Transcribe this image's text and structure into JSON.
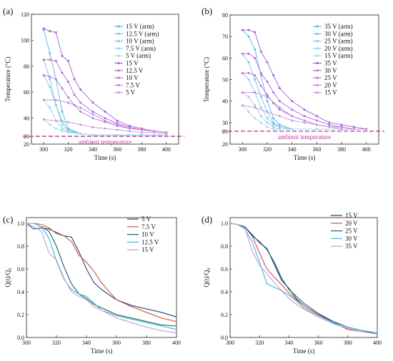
{
  "chart_data": [
    {
      "panel": "(a)",
      "type": "line",
      "xlabel": "Time (s)",
      "ylabel": "Temperature (°C)",
      "xlim": [
        290,
        410
      ],
      "ylim": [
        20,
        120
      ],
      "xticks": [
        300,
        320,
        340,
        360,
        380,
        400
      ],
      "yticks": [
        20,
        26,
        40,
        60,
        80,
        100,
        120
      ],
      "markers": true,
      "legend_position": "top-right",
      "annotation": "ambient temperature",
      "ambient_value": 26,
      "series": [
        {
          "name": "15 V (arm)",
          "color": "#5ab6e8",
          "x": [
            300,
            305,
            310,
            315,
            320,
            330,
            340,
            360,
            380,
            400
          ],
          "y": [
            108,
            90,
            70,
            45,
            32,
            28,
            27,
            27,
            27,
            27
          ]
        },
        {
          "name": "12.5 V (arm)",
          "color": "#6fc3e2",
          "x": [
            300,
            305,
            310,
            315,
            320,
            330,
            340,
            360,
            380,
            400
          ],
          "y": [
            85,
            70,
            50,
            38,
            31,
            28,
            27,
            27,
            27,
            27
          ]
        },
        {
          "name": "10 V (arm)",
          "color": "#7fcbe6",
          "x": [
            300,
            305,
            310,
            315,
            320,
            330,
            340,
            360,
            380,
            400
          ],
          "y": [
            73,
            64,
            50,
            35,
            30,
            28,
            27,
            27,
            27,
            27
          ]
        },
        {
          "name": "7.5 V (arm)",
          "color": "#8fd2ea",
          "x": [
            300,
            305,
            310,
            315,
            320,
            330,
            340,
            360,
            380,
            400
          ],
          "y": [
            54,
            48,
            38,
            32,
            29,
            28,
            27,
            27,
            27,
            27
          ]
        },
        {
          "name": "5 V (arm)",
          "color": "#a3d9ee",
          "x": [
            300,
            305,
            310,
            315,
            320,
            330,
            340,
            360,
            380,
            400
          ],
          "y": [
            39,
            35,
            32,
            30,
            29,
            28,
            27,
            27,
            27,
            27
          ]
        },
        {
          "name": "15 V",
          "color": "#a55fd6",
          "x": [
            300,
            305,
            310,
            315,
            320,
            325,
            330,
            340,
            350,
            360,
            370,
            380,
            390,
            400
          ],
          "y": [
            109,
            107,
            106,
            88,
            84,
            70,
            62,
            52,
            45,
            38,
            34,
            32,
            30,
            29
          ]
        },
        {
          "name": "12.5 V",
          "color": "#b06ad9",
          "x": [
            300,
            305,
            310,
            315,
            320,
            325,
            330,
            340,
            350,
            360,
            370,
            380,
            390,
            400
          ],
          "y": [
            85,
            85,
            84,
            75,
            68,
            58,
            52,
            45,
            40,
            36,
            33,
            31,
            30,
            29
          ]
        },
        {
          "name": "10 V",
          "color": "#b877dc",
          "x": [
            300,
            305,
            310,
            315,
            320,
            325,
            330,
            340,
            350,
            360,
            370,
            380,
            390,
            400
          ],
          "y": [
            73,
            72,
            70,
            63,
            56,
            50,
            45,
            40,
            37,
            34,
            32,
            31,
            30,
            29
          ]
        },
        {
          "name": "7.5 V",
          "color": "#c184de",
          "x": [
            300,
            310,
            320,
            330,
            340,
            350,
            360,
            370,
            380,
            390,
            400
          ],
          "y": [
            54,
            54,
            52,
            48,
            43,
            38,
            35,
            32,
            31,
            30,
            29
          ]
        },
        {
          "name": "5 V",
          "color": "#c993e2",
          "x": [
            300,
            310,
            320,
            330,
            340,
            350,
            360,
            370,
            380,
            390,
            400
          ],
          "y": [
            39,
            38,
            37,
            35,
            33,
            32,
            31,
            30,
            29,
            29,
            28
          ]
        }
      ]
    },
    {
      "panel": "(b)",
      "type": "line",
      "xlabel": "Time (s)",
      "ylabel": "Temperature (°C)",
      "xlim": [
        290,
        410
      ],
      "ylim": [
        20,
        80
      ],
      "xticks": [
        300,
        320,
        340,
        360,
        380,
        400
      ],
      "yticks": [
        20,
        26,
        30,
        40,
        50,
        60,
        70,
        80
      ],
      "markers": true,
      "legend_position": "top-right",
      "annotation": "ambient temperature",
      "ambient_value": 26,
      "series": [
        {
          "name": "35 V (arm)",
          "color": "#5ab6e8",
          "x": [
            300,
            305,
            310,
            315,
            320,
            325,
            330,
            340,
            360,
            380,
            400
          ],
          "y": [
            73,
            70,
            64,
            52,
            40,
            32,
            29,
            27,
            27,
            27,
            27
          ]
        },
        {
          "name": "30 V (arm)",
          "color": "#6fc3e2",
          "x": [
            300,
            305,
            310,
            315,
            320,
            325,
            330,
            340,
            360,
            380,
            400
          ],
          "y": [
            62,
            58,
            50,
            42,
            35,
            30,
            28,
            27,
            27,
            27,
            27
          ]
        },
        {
          "name": "25 V (arm)",
          "color": "#7fcbe6",
          "x": [
            300,
            305,
            310,
            315,
            320,
            325,
            330,
            340,
            360,
            380,
            400
          ],
          "y": [
            53,
            50,
            44,
            37,
            32,
            29,
            28,
            27,
            27,
            27,
            27
          ]
        },
        {
          "name": "20 V (arm)",
          "color": "#8fd2ea",
          "x": [
            300,
            305,
            310,
            315,
            320,
            325,
            330,
            340,
            360,
            380,
            400
          ],
          "y": [
            44,
            42,
            38,
            33,
            30,
            28,
            27,
            27,
            27,
            27,
            27
          ]
        },
        {
          "name": "15 V (arm)",
          "color": "#a3d9ee",
          "x": [
            300,
            305,
            310,
            315,
            320,
            325,
            330,
            340,
            360,
            380,
            400
          ],
          "y": [
            38,
            35,
            32,
            30,
            28,
            27,
            27,
            27,
            27,
            27,
            27
          ]
        },
        {
          "name": "35 V",
          "color": "#a55fd6",
          "x": [
            300,
            305,
            310,
            315,
            320,
            325,
            330,
            340,
            350,
            360,
            370,
            380,
            390,
            400
          ],
          "y": [
            73,
            73,
            72,
            63,
            58,
            52,
            46,
            40,
            36,
            33,
            30,
            29,
            28,
            27
          ]
        },
        {
          "name": "30 V",
          "color": "#b06ad9",
          "x": [
            300,
            305,
            310,
            315,
            320,
            325,
            330,
            340,
            350,
            360,
            370,
            380,
            390,
            400
          ],
          "y": [
            62,
            62,
            60,
            53,
            49,
            44,
            40,
            36,
            33,
            31,
            29,
            28,
            27,
            27
          ]
        },
        {
          "name": "25 V",
          "color": "#b877dc",
          "x": [
            300,
            305,
            310,
            315,
            320,
            325,
            330,
            340,
            350,
            360,
            370,
            380,
            390,
            400
          ],
          "y": [
            53,
            53,
            52,
            47,
            43,
            39,
            36,
            33,
            31,
            29,
            28,
            28,
            27,
            27
          ]
        },
        {
          "name": "20 V",
          "color": "#c184de",
          "x": [
            300,
            310,
            320,
            330,
            340,
            350,
            360,
            370,
            380,
            390,
            400
          ],
          "y": [
            44,
            44,
            42,
            37,
            33,
            31,
            29,
            28,
            28,
            27,
            27
          ]
        },
        {
          "name": "15 V",
          "color": "#c993e2",
          "x": [
            300,
            310,
            320,
            330,
            340,
            350,
            360,
            370,
            380,
            390,
            400
          ],
          "y": [
            38,
            37,
            35,
            33,
            31,
            30,
            29,
            28,
            27,
            27,
            27
          ]
        }
      ]
    },
    {
      "panel": "(c)",
      "type": "line",
      "xlabel": "Time (s)",
      "ylabel": "Q(t)/Q₀",
      "xlim": [
        300,
        400
      ],
      "ylim": [
        0,
        1.05
      ],
      "xticks": [
        300,
        320,
        340,
        360,
        380,
        400
      ],
      "yticks": [
        0.0,
        0.2,
        0.4,
        0.6,
        0.8,
        1.0
      ],
      "markers": false,
      "legend_position": "top-right",
      "series": [
        {
          "name": "5 V",
          "color": "#2b3a7a",
          "x": [
            300,
            305,
            310,
            315,
            320,
            325,
            330,
            335,
            340,
            345,
            350,
            360,
            370,
            380,
            390,
            400
          ],
          "y": [
            1.0,
            0.95,
            0.96,
            0.95,
            0.92,
            0.89,
            0.88,
            0.75,
            0.6,
            0.48,
            0.42,
            0.33,
            0.28,
            0.25,
            0.22,
            0.18
          ]
        },
        {
          "name": "7.5 V",
          "color": "#c8553d",
          "x": [
            300,
            305,
            310,
            315,
            320,
            325,
            330,
            335,
            340,
            345,
            350,
            360,
            370,
            380,
            390,
            400
          ],
          "y": [
            1.0,
            1.0,
            0.99,
            0.96,
            0.91,
            0.89,
            0.84,
            0.72,
            0.66,
            0.58,
            0.48,
            0.33,
            0.27,
            0.22,
            0.17,
            0.14
          ]
        },
        {
          "name": "10 V",
          "color": "#1f5a6a",
          "x": [
            300,
            305,
            310,
            315,
            320,
            325,
            330,
            335,
            340,
            345,
            350,
            360,
            370,
            380,
            390,
            400
          ],
          "y": [
            1.0,
            1.0,
            0.97,
            0.93,
            0.8,
            0.62,
            0.47,
            0.38,
            0.34,
            0.29,
            0.26,
            0.2,
            0.17,
            0.14,
            0.11,
            0.1
          ]
        },
        {
          "name": "12.5 V",
          "color": "#3fb7d6",
          "x": [
            300,
            305,
            310,
            315,
            320,
            325,
            330,
            335,
            340,
            345,
            350,
            360,
            370,
            380,
            390,
            400
          ],
          "y": [
            1.0,
            1.0,
            0.97,
            0.87,
            0.67,
            0.51,
            0.42,
            0.38,
            0.36,
            0.3,
            0.24,
            0.19,
            0.16,
            0.13,
            0.1,
            0.07
          ]
        },
        {
          "name": "15 V",
          "color": "#c69ad9",
          "x": [
            300,
            305,
            310,
            315,
            320,
            325,
            330,
            335,
            340,
            345,
            350,
            360,
            370,
            380,
            390,
            400
          ],
          "y": [
            1.0,
            0.97,
            0.93,
            0.74,
            0.68,
            0.52,
            0.4,
            0.36,
            0.33,
            0.27,
            0.24,
            0.17,
            0.13,
            0.09,
            0.06,
            0.04
          ]
        }
      ]
    },
    {
      "panel": "(d)",
      "type": "line",
      "xlabel": "Time (s)",
      "ylabel": "Q(t)/Q₀",
      "xlim": [
        300,
        400
      ],
      "ylim": [
        0,
        1.05
      ],
      "xticks": [
        300,
        320,
        340,
        360,
        380,
        400
      ],
      "yticks": [
        0.0,
        0.2,
        0.4,
        0.6,
        0.8,
        1.0
      ],
      "markers": false,
      "legend_position": "top-right",
      "series": [
        {
          "name": "15 V",
          "color": "#1f3f73",
          "x": [
            300,
            305,
            310,
            315,
            320,
            325,
            330,
            335,
            340,
            345,
            350,
            360,
            370,
            380,
            390,
            400
          ],
          "y": [
            1.0,
            0.99,
            0.97,
            0.9,
            0.83,
            0.78,
            0.64,
            0.5,
            0.43,
            0.34,
            0.28,
            0.2,
            0.14,
            0.09,
            0.06,
            0.03
          ]
        },
        {
          "name": "20 V",
          "color": "#c8553d",
          "x": [
            300,
            305,
            310,
            315,
            320,
            325,
            330,
            335,
            340,
            345,
            350,
            360,
            370,
            380,
            390,
            400
          ],
          "y": [
            1.0,
            0.99,
            0.97,
            0.89,
            0.74,
            0.6,
            0.53,
            0.46,
            0.39,
            0.33,
            0.28,
            0.2,
            0.13,
            0.07,
            0.05,
            0.03
          ]
        },
        {
          "name": "25 V",
          "color": "#1f5a6a",
          "x": [
            300,
            305,
            310,
            315,
            320,
            325,
            330,
            335,
            340,
            345,
            350,
            360,
            370,
            380,
            390,
            400
          ],
          "y": [
            1.0,
            0.99,
            0.97,
            0.89,
            0.84,
            0.77,
            0.66,
            0.52,
            0.42,
            0.36,
            0.3,
            0.21,
            0.14,
            0.09,
            0.06,
            0.03
          ]
        },
        {
          "name": "30 V",
          "color": "#3fb7d6",
          "x": [
            300,
            305,
            310,
            315,
            320,
            325,
            330,
            335,
            340,
            345,
            350,
            360,
            370,
            380,
            390,
            400
          ],
          "y": [
            1.0,
            0.99,
            0.95,
            0.84,
            0.66,
            0.47,
            0.44,
            0.41,
            0.37,
            0.32,
            0.26,
            0.19,
            0.13,
            0.09,
            0.06,
            0.04
          ]
        },
        {
          "name": "35 V",
          "color": "#c69ad9",
          "x": [
            300,
            305,
            310,
            315,
            320,
            325,
            330,
            335,
            340,
            345,
            350,
            360,
            370,
            380,
            390,
            400
          ],
          "y": [
            1.0,
            0.99,
            0.96,
            0.76,
            0.63,
            0.56,
            0.48,
            0.41,
            0.34,
            0.29,
            0.25,
            0.18,
            0.12,
            0.08,
            0.05,
            0.03
          ]
        }
      ]
    }
  ]
}
